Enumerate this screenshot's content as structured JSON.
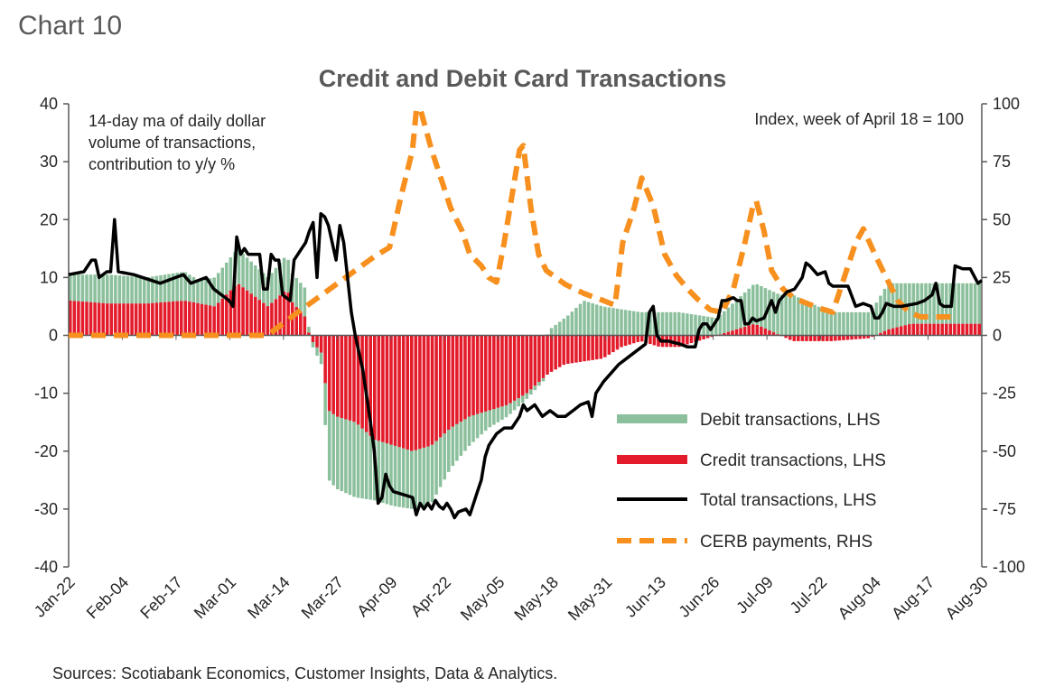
{
  "header": {
    "chart_label": "Chart 10",
    "title": "Credit and Debit Card Transactions",
    "note_left": "14-day ma of daily dollar\nvolume of transactions,\ncontribution to y/y %",
    "note_right": "Index, week of April 18 = 100",
    "source": "Sources: Scotiabank Economics, Customer Insights, Data & Analytics."
  },
  "colors": {
    "debit": "#8cc09d",
    "credit": "#e31b2b",
    "total": "#000000",
    "cerb": "#f7901e",
    "axis": "#595959"
  },
  "chart_data": {
    "type": "bar",
    "title": "Credit and Debit Card Transactions",
    "xlabel": "",
    "ylabel": "14-day ma of daily dollar volume of transactions, contribution to y/y %",
    "y2label": "Index, week of April 18 = 100",
    "ylim": [
      -40,
      40
    ],
    "y2lim": [
      -100,
      100
    ],
    "y_ticks": [
      "40",
      "30",
      "20",
      "10",
      "0",
      "-10",
      "-20",
      "-30",
      "-40"
    ],
    "y2_ticks": [
      "100",
      "75",
      "50",
      "25",
      "0",
      "-25",
      "-50",
      "-75",
      "-100"
    ],
    "x_tick_labels": [
      "Jan-22",
      "Feb-04",
      "Feb-17",
      "Mar-01",
      "Mar-14",
      "Mar-27",
      "Apr-09",
      "Apr-22",
      "May-05",
      "May-18",
      "May-31",
      "Jun-13",
      "Jun-26",
      "Jul-09",
      "Jul-22",
      "Aug-04",
      "Aug-17",
      "Aug-30"
    ],
    "x_index_range": [
      0,
      221
    ],
    "series": [
      {
        "name": "Debit transactions, LHS",
        "type": "bar-stacked",
        "points": [
          [
            0,
            4.5
          ],
          [
            10,
            5
          ],
          [
            20,
            4.5
          ],
          [
            30,
            5
          ],
          [
            34,
            4
          ],
          [
            38,
            5
          ],
          [
            44,
            6
          ],
          [
            48,
            5.5
          ],
          [
            52,
            5
          ],
          [
            57,
            6
          ],
          [
            58,
            5
          ],
          [
            62,
            5
          ],
          [
            63,
            -0.5
          ],
          [
            66,
            -2
          ],
          [
            68,
            -12
          ],
          [
            70,
            -12.5
          ],
          [
            75,
            -13
          ],
          [
            80,
            -10.5
          ],
          [
            85,
            -10.5
          ],
          [
            90,
            -10
          ],
          [
            95,
            -10
          ],
          [
            100,
            -7
          ],
          [
            105,
            -5
          ],
          [
            110,
            -3
          ],
          [
            115,
            -2
          ],
          [
            120,
            -1
          ],
          [
            125,
            -0.5
          ],
          [
            126,
            1
          ],
          [
            130,
            3
          ],
          [
            131,
            3.5
          ],
          [
            135,
            6
          ],
          [
            140,
            5
          ],
          [
            150,
            4
          ],
          [
            160,
            4
          ],
          [
            170,
            3
          ],
          [
            180,
            7
          ],
          [
            190,
            7
          ],
          [
            200,
            4
          ],
          [
            210,
            4
          ],
          [
            215,
            8
          ],
          [
            221,
            7
          ]
        ]
      },
      {
        "name": "Credit transactions, LHS",
        "type": "bar-stacked",
        "points": [
          [
            0,
            6
          ],
          [
            10,
            5.5
          ],
          [
            20,
            5.5
          ],
          [
            30,
            6
          ],
          [
            38,
            5
          ],
          [
            44,
            9
          ],
          [
            48,
            7
          ],
          [
            52,
            5
          ],
          [
            57,
            8
          ],
          [
            58,
            6
          ],
          [
            62,
            3
          ],
          [
            63,
            -0.5
          ],
          [
            66,
            -3
          ],
          [
            68,
            -13
          ],
          [
            70,
            -14
          ],
          [
            75,
            -15
          ],
          [
            80,
            -18
          ],
          [
            85,
            -19
          ],
          [
            90,
            -20
          ],
          [
            95,
            -19
          ],
          [
            100,
            -16
          ],
          [
            105,
            -14
          ],
          [
            110,
            -13
          ],
          [
            115,
            -12
          ],
          [
            120,
            -10
          ],
          [
            125,
            -7
          ],
          [
            126,
            -6.5
          ],
          [
            130,
            -5
          ],
          [
            135,
            -4.5
          ],
          [
            140,
            -4
          ],
          [
            145,
            -2
          ],
          [
            150,
            -1
          ],
          [
            155,
            -2
          ],
          [
            160,
            -2
          ],
          [
            170,
            0
          ],
          [
            180,
            2
          ],
          [
            190,
            -1
          ],
          [
            200,
            -1
          ],
          [
            210,
            -0.5
          ],
          [
            215,
            1
          ],
          [
            221,
            2
          ]
        ]
      },
      {
        "name": "Total transactions, LHS",
        "type": "line",
        "points": [
          [
            0,
            10.5
          ],
          [
            4,
            11
          ],
          [
            6,
            13
          ],
          [
            7,
            13
          ],
          [
            8,
            10
          ],
          [
            10,
            11
          ],
          [
            11,
            11
          ],
          [
            12,
            20
          ],
          [
            13,
            11
          ],
          [
            17,
            10.5
          ],
          [
            24,
            9
          ],
          [
            30,
            10.5
          ],
          [
            32,
            9
          ],
          [
            36,
            10
          ],
          [
            38,
            8
          ],
          [
            40,
            7
          ],
          [
            42,
            6
          ],
          [
            43,
            5
          ],
          [
            44,
            17
          ],
          [
            45,
            14
          ],
          [
            46,
            15
          ],
          [
            47,
            14
          ],
          [
            50,
            14
          ],
          [
            51,
            8
          ],
          [
            52,
            8
          ],
          [
            53,
            14
          ],
          [
            54,
            13
          ],
          [
            55,
            13
          ],
          [
            56,
            7
          ],
          [
            58,
            6
          ],
          [
            59,
            13
          ],
          [
            61,
            15
          ],
          [
            62,
            16
          ],
          [
            63,
            18
          ],
          [
            64,
            19.5
          ],
          [
            65,
            10
          ],
          [
            66,
            21
          ],
          [
            67,
            20.5
          ],
          [
            68,
            19
          ],
          [
            70,
            13
          ],
          [
            71,
            19
          ],
          [
            72,
            16
          ],
          [
            73,
            10
          ],
          [
            74,
            4
          ],
          [
            75,
            0
          ],
          [
            77,
            -6
          ],
          [
            79,
            -15
          ],
          [
            80,
            -20
          ],
          [
            81,
            -29
          ],
          [
            82,
            -28
          ],
          [
            83,
            -24
          ],
          [
            84,
            -26
          ],
          [
            85,
            -27
          ],
          [
            90,
            -28
          ],
          [
            91,
            -31
          ],
          [
            92,
            -29
          ],
          [
            93,
            -30
          ],
          [
            94,
            -29
          ],
          [
            95,
            -30
          ],
          [
            96,
            -28.5
          ],
          [
            97,
            -29.5
          ],
          [
            98,
            -30
          ],
          [
            99,
            -29
          ],
          [
            100,
            -30
          ],
          [
            101,
            -31.5
          ],
          [
            102,
            -30.5
          ],
          [
            104,
            -30
          ],
          [
            105,
            -31
          ],
          [
            106,
            -29
          ],
          [
            107,
            -27
          ],
          [
            108,
            -25
          ],
          [
            109,
            -21
          ],
          [
            110,
            -19
          ],
          [
            112,
            -17
          ],
          [
            114,
            -16
          ],
          [
            116,
            -16
          ],
          [
            118,
            -14
          ],
          [
            119,
            -12
          ],
          [
            120,
            -13
          ],
          [
            122,
            -12
          ],
          [
            124,
            -14
          ],
          [
            126,
            -13
          ],
          [
            128,
            -14
          ],
          [
            130,
            -14
          ],
          [
            132,
            -13
          ],
          [
            134,
            -12
          ],
          [
            136,
            -11.5
          ],
          [
            137,
            -14
          ],
          [
            138,
            -10
          ],
          [
            139,
            -9
          ],
          [
            140,
            -8
          ],
          [
            142,
            -6.5
          ],
          [
            144,
            -5
          ],
          [
            146,
            -4
          ],
          [
            148,
            -3
          ],
          [
            150,
            -2
          ],
          [
            151,
            -1.5
          ],
          [
            152,
            4
          ],
          [
            153,
            5
          ],
          [
            154,
            0
          ],
          [
            155,
            -1
          ],
          [
            157,
            -1
          ],
          [
            160,
            -1.5
          ],
          [
            162,
            -2
          ],
          [
            164,
            -2
          ],
          [
            165,
            1
          ],
          [
            166,
            2
          ],
          [
            167,
            2
          ],
          [
            168,
            1
          ],
          [
            170,
            3
          ],
          [
            171,
            6
          ],
          [
            172,
            6
          ],
          [
            174,
            6.5
          ],
          [
            175,
            6
          ],
          [
            176,
            6
          ],
          [
            177,
            2
          ],
          [
            178,
            2
          ],
          [
            179,
            3
          ],
          [
            180,
            2.5
          ],
          [
            182,
            3
          ],
          [
            184,
            6
          ],
          [
            185,
            4
          ],
          [
            186,
            6
          ],
          [
            188,
            7.5
          ],
          [
            190,
            8
          ],
          [
            191,
            9
          ],
          [
            192,
            10
          ],
          [
            193,
            12.5
          ],
          [
            194,
            12
          ],
          [
            196,
            10.5
          ],
          [
            198,
            11
          ],
          [
            199,
            9
          ],
          [
            200,
            8.5
          ],
          [
            203,
            8.5
          ],
          [
            204,
            8.5
          ],
          [
            206,
            5
          ],
          [
            208,
            5.5
          ],
          [
            210,
            5
          ],
          [
            211,
            3
          ],
          [
            212,
            3
          ],
          [
            213,
            4
          ],
          [
            214,
            5.5
          ],
          [
            216,
            5
          ],
          [
            218,
            5
          ],
          [
            222,
            5.5
          ],
          [
            224,
            6
          ],
          [
            226,
            7
          ],
          [
            227,
            9
          ],
          [
            228,
            5.5
          ],
          [
            229,
            5
          ],
          [
            231,
            5
          ],
          [
            232,
            12
          ],
          [
            234,
            11.5
          ],
          [
            236,
            11.5
          ],
          [
            238,
            9
          ],
          [
            239,
            9.5
          ]
        ]
      },
      {
        "name": "CERB payments, RHS",
        "type": "line-dashed",
        "axis": "right",
        "points": [
          [
            0,
            0
          ],
          [
            10,
            0
          ],
          [
            20,
            0
          ],
          [
            30,
            0
          ],
          [
            40,
            0
          ],
          [
            50,
            0
          ],
          [
            52,
            0
          ],
          [
            56,
            5
          ],
          [
            60,
            10
          ],
          [
            65,
            16
          ],
          [
            70,
            22
          ],
          [
            75,
            28
          ],
          [
            80,
            34
          ],
          [
            84,
            38
          ],
          [
            87,
            60
          ],
          [
            90,
            80
          ],
          [
            91,
            97
          ],
          [
            92,
            98
          ],
          [
            95,
            80
          ],
          [
            100,
            55
          ],
          [
            103,
            45
          ],
          [
            105,
            35
          ],
          [
            108,
            30
          ],
          [
            110,
            25
          ],
          [
            112,
            23
          ],
          [
            114,
            40
          ],
          [
            116,
            60
          ],
          [
            118,
            80
          ],
          [
            119,
            82
          ],
          [
            121,
            55
          ],
          [
            123,
            35
          ],
          [
            125,
            28
          ],
          [
            130,
            22
          ],
          [
            135,
            18
          ],
          [
            140,
            15
          ],
          [
            143,
            13
          ],
          [
            145,
            40
          ],
          [
            148,
            55
          ],
          [
            150,
            68
          ],
          [
            153,
            56
          ],
          [
            156,
            35
          ],
          [
            159,
            26
          ],
          [
            162,
            20
          ],
          [
            165,
            15
          ],
          [
            168,
            11
          ],
          [
            171,
            10
          ],
          [
            174,
            20
          ],
          [
            177,
            40
          ],
          [
            179,
            55
          ],
          [
            180,
            58
          ],
          [
            182,
            45
          ],
          [
            184,
            28
          ],
          [
            187,
            20
          ],
          [
            190,
            16
          ],
          [
            193,
            14
          ],
          [
            196,
            12
          ],
          [
            200,
            10
          ],
          [
            203,
            25
          ],
          [
            206,
            40
          ],
          [
            208,
            46
          ],
          [
            211,
            35
          ],
          [
            214,
            25
          ],
          [
            217,
            15
          ],
          [
            220,
            10
          ],
          [
            223,
            8
          ],
          [
            226,
            8
          ],
          [
            229,
            8
          ],
          [
            231,
            8
          ]
        ]
      }
    ],
    "legend": [
      "Debit transactions, LHS",
      "Credit transactions, LHS",
      "Total transactions, LHS",
      "CERB payments, RHS"
    ]
  }
}
